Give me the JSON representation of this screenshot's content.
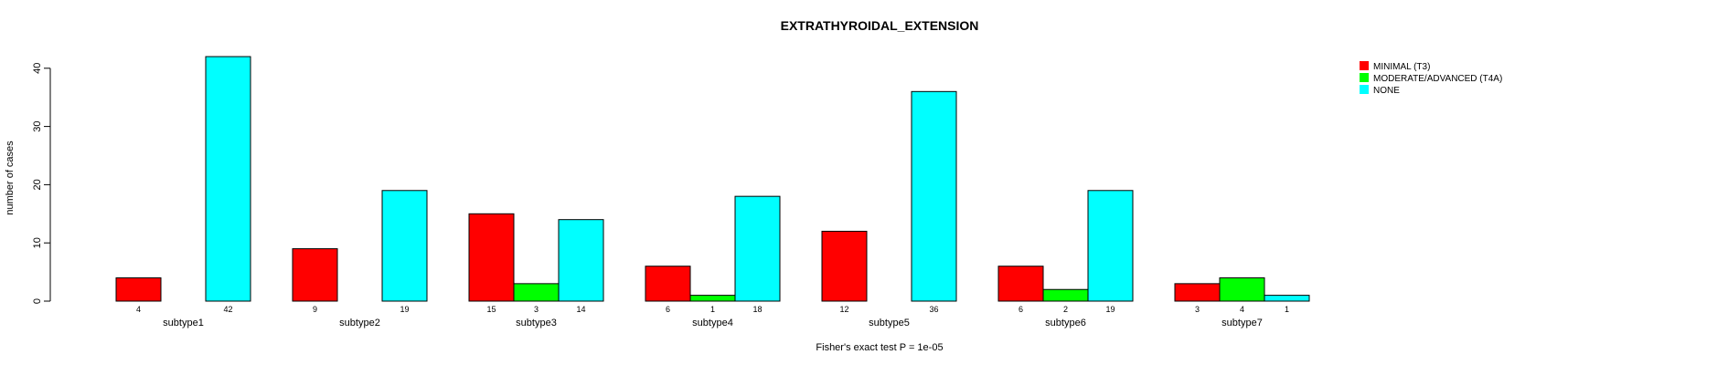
{
  "chart_data": {
    "type": "bar",
    "title": "EXTRATHYROIDAL_EXTENSION",
    "xlabel": "Fisher's exact test P = 1e-05",
    "ylabel": "number of cases",
    "ylim": [
      0,
      42
    ],
    "yticks": [
      0,
      10,
      20,
      30,
      40
    ],
    "grid": false,
    "legend_position": "top-right",
    "categories": [
      "subtype1",
      "subtype2",
      "subtype3",
      "subtype4",
      "subtype5",
      "subtype6",
      "subtype7"
    ],
    "series": [
      {
        "name": "MINIMAL (T3)",
        "color": "#ff0000",
        "values": [
          4,
          9,
          15,
          6,
          12,
          6,
          3
        ]
      },
      {
        "name": "MODERATE/ADVANCED (T4A)",
        "color": "#00ff00",
        "values": [
          0,
          0,
          3,
          1,
          0,
          2,
          4
        ]
      },
      {
        "name": "NONE",
        "color": "#00ffff",
        "values": [
          42,
          19,
          14,
          18,
          36,
          19,
          1
        ]
      }
    ],
    "data_labels": [
      [
        "4",
        "",
        "42"
      ],
      [
        "9",
        "",
        "19"
      ],
      [
        "15",
        "3",
        "14"
      ],
      [
        "6",
        "1",
        "18"
      ],
      [
        "12",
        "",
        "36"
      ],
      [
        "6",
        "2",
        "19"
      ],
      [
        "3",
        "4",
        "1"
      ]
    ]
  }
}
